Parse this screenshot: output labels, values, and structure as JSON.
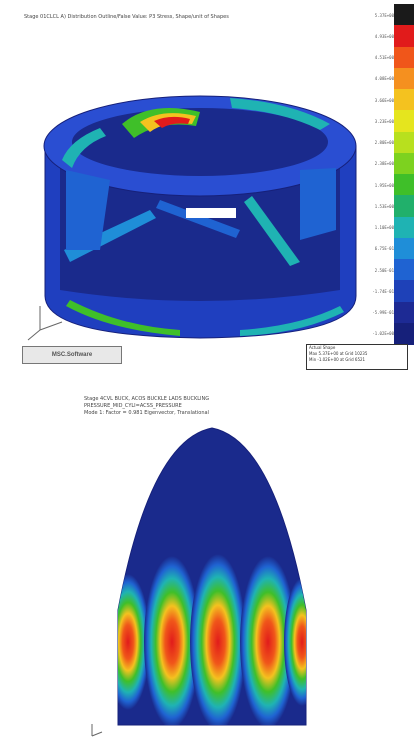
{
  "top_figure": {
    "caption": "Stage 01CLCL A) Distribution Outline/False Value: P3 Stress, Shape/unit of Shapes",
    "colorbar_labels": [
      "5.37E+00",
      "4.93E+00",
      "4.51E+00",
      "4.08E+00",
      "3.66E+00",
      "3.23E+00",
      "2.80E+00",
      "2.38E+00",
      "1.95E+00",
      "1.53E+00",
      "1.10E+00",
      "6.75E-01",
      "2.50E-01",
      "-1.74E-01",
      "-5.99E-01",
      "-1.02E+00"
    ],
    "colorbar_colors": [
      "#1a1a1a",
      "#e11b1b",
      "#f0561a",
      "#f5901f",
      "#f4c21f",
      "#e5e51e",
      "#b8e01e",
      "#7dd21f",
      "#3fbf29",
      "#21b06b",
      "#1fb3b3",
      "#1f8ed8",
      "#1f63d2",
      "#1e41b8",
      "#1d2a94",
      "#16207a"
    ],
    "info_lines": [
      "Actual Shape",
      "Max 5.37E+00 at Grid 10235",
      "Min -1.02E+00 at Grid 6521"
    ],
    "logo_text": "MSC.Software"
  },
  "bottom_figure": {
    "caption": "Stage 4CVL BUCK, ACOS BUCKLE LADS BUCKLING\nPRESSURE_MID_CYLI=ACSS_PRESSURE\nMode 1: Factor = 0.981  Eigenvector, Translational"
  },
  "colors": {
    "dark_blue": "#1a2a8c",
    "mid_blue": "#1f63d2",
    "cyan": "#1fb3b3",
    "green": "#3fbf29",
    "yellow": "#f4c21f",
    "orange": "#f0561a",
    "red": "#e11b1b"
  }
}
